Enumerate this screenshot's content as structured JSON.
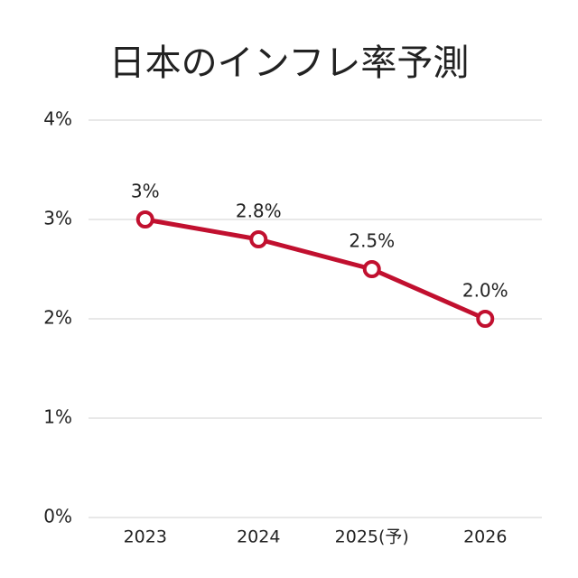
{
  "chart_data": {
    "type": "line",
    "title": "日本のインフレ率予測",
    "categories": [
      "2023",
      "2024",
      "2025(予)",
      "2026"
    ],
    "series": [
      {
        "color": "#c1102f",
        "values": [
          3,
          2.8,
          2.5,
          2.0
        ],
        "value_labels": [
          "3%",
          "2.8%",
          "2.5%",
          "2.0%"
        ]
      }
    ],
    "ylim": [
      0,
      4
    ],
    "yticks": [
      {
        "value": 0,
        "label": "0%"
      },
      {
        "value": 1,
        "label": "1%"
      },
      {
        "value": 2,
        "label": "2%"
      },
      {
        "value": 3,
        "label": "3%"
      },
      {
        "value": 4,
        "label": "4%"
      }
    ],
    "grid": true
  }
}
